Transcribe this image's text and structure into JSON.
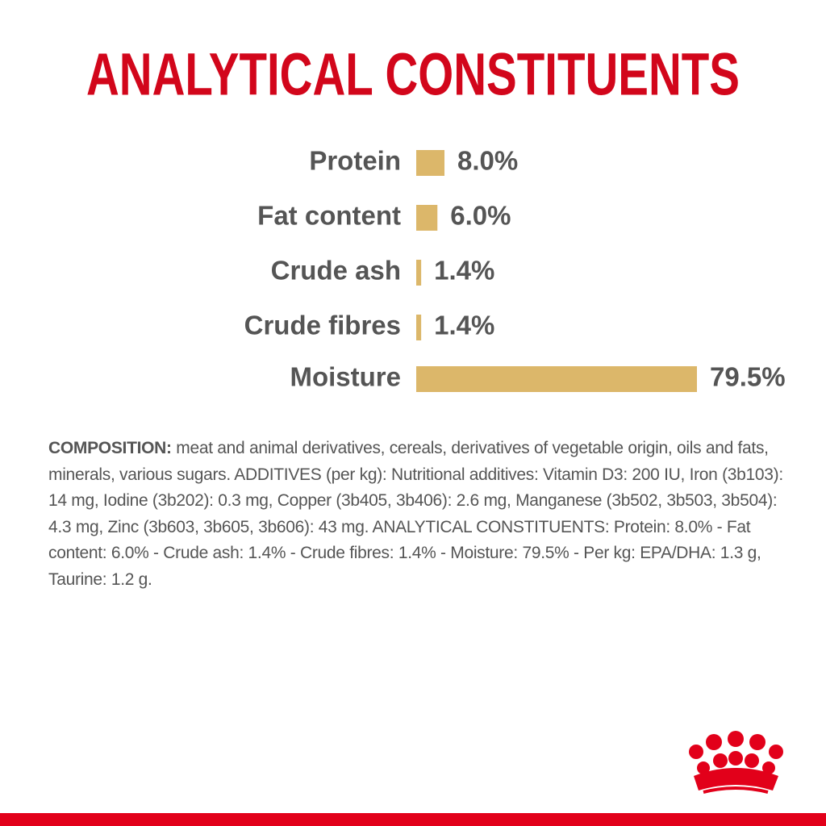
{
  "chart_data": {
    "type": "bar",
    "orientation": "horizontal",
    "title": "ANALYTICAL CONSTITUENTS",
    "categories": [
      "Protein",
      "Fat content",
      "Crude ash",
      "Crude fibres",
      "Moisture"
    ],
    "values": [
      8.0,
      6.0,
      1.4,
      1.4,
      79.5
    ],
    "value_labels": [
      "8.0%",
      "6.0%",
      "1.4%",
      "1.4%",
      "79.5%"
    ],
    "color": "#dcb76a"
  },
  "composition": {
    "label": "COMPOSITION:",
    "text": "meat and animal derivatives, cereals, derivatives of vegetable origin, oils and fats, minerals, various sugars. ADDITIVES (per kg): Nutritional additives: Vitamin D3: 200 IU, Iron (3b103): 14 mg, Iodine (3b202): 0.3 mg, Copper (3b405, 3b406): 2.6 mg, Manganese (3b502, 3b503, 3b504): 4.3 mg, Zinc (3b603, 3b605, 3b606): 43 mg. ANALYTICAL CONSTITUENTS: Protein: 8.0% - Fat content: 6.0% - Crude ash: 1.4% - Crude fibres: 1.4% - Moisture: 79.5% - Per kg: EPA/DHA: 1.3 g, Taurine: 1.2 g."
  }
}
